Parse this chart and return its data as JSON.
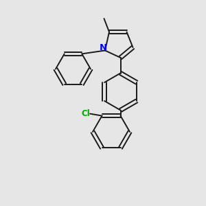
{
  "background_color": "#e6e6e6",
  "bond_color": "#1a1a1a",
  "nitrogen_color": "#0000ee",
  "chlorine_color": "#00aa00",
  "figsize": [
    3.0,
    3.0
  ],
  "dpi": 100,
  "lw": 1.4
}
